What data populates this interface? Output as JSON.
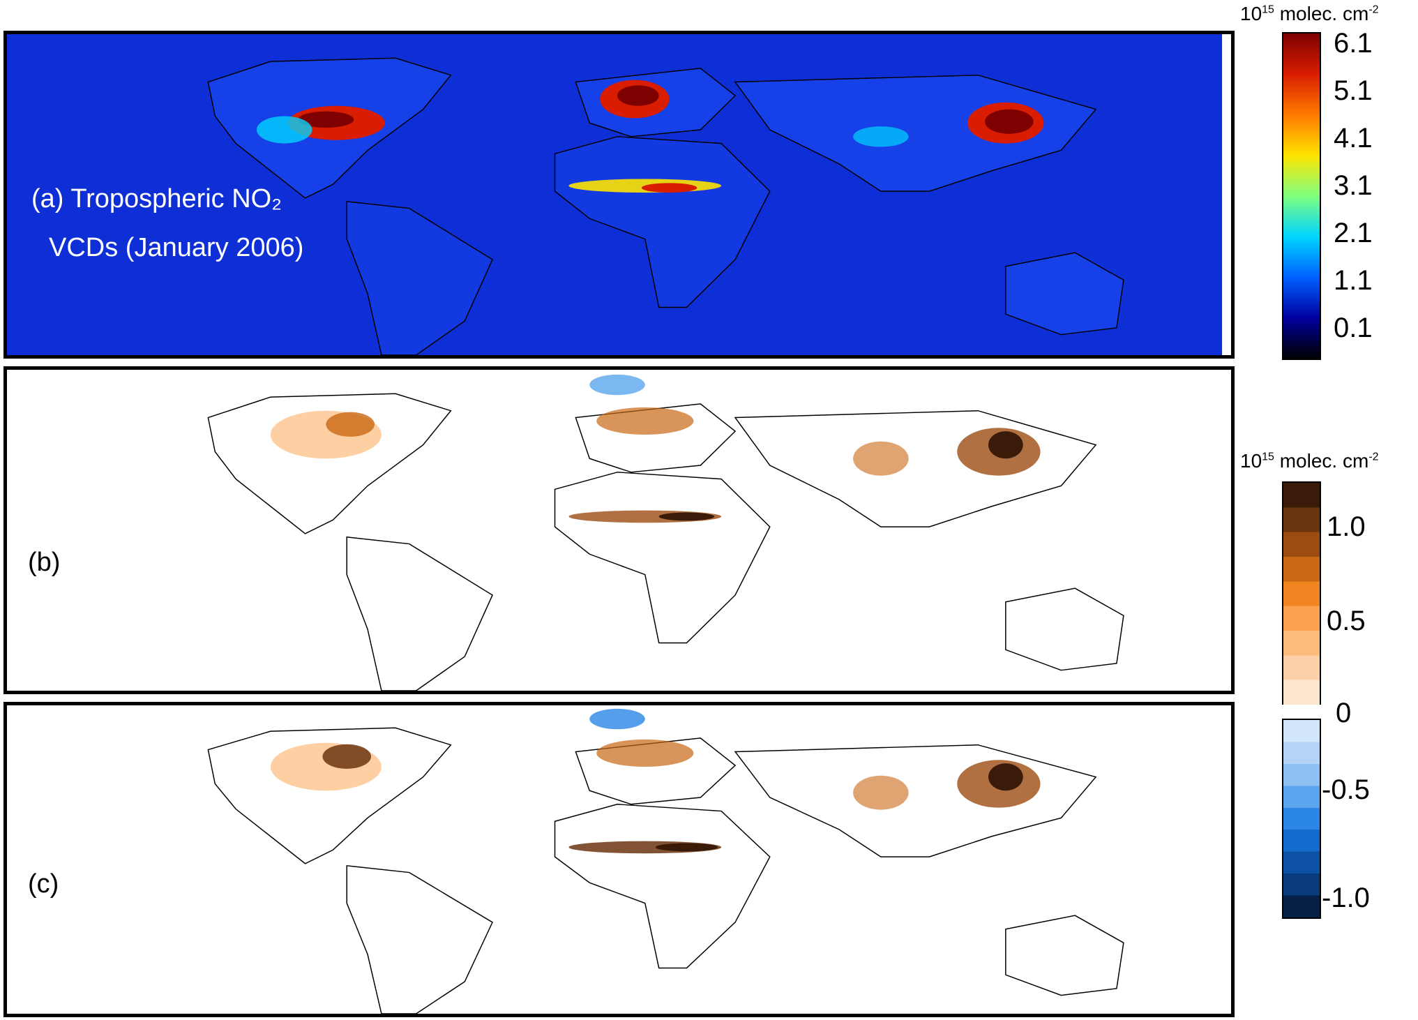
{
  "panels": {
    "a": {
      "label_line1": "(a) Tropospheric NO₂",
      "label_line2": "VCDs (January 2006)"
    },
    "b": {
      "label": "(b)"
    },
    "c": {
      "label": "(c)"
    }
  },
  "colorbar1": {
    "unit_base": "10",
    "unit_exp": "15",
    "unit_rest": " molec. cm",
    "unit_exp2": "-2",
    "ticks": [
      "6.1",
      "5.1",
      "4.1",
      "3.1",
      "2.1",
      "1.1",
      "0.1"
    ],
    "colors": [
      "#7f0000",
      "#d91d00",
      "#ff7a00",
      "#ffe400",
      "#7fff7f",
      "#00d4ff",
      "#0060ff",
      "#00009f",
      "#000000"
    ]
  },
  "colorbar2": {
    "unit_base": "10",
    "unit_exp": "15",
    "unit_rest": " molec. cm",
    "unit_exp2": "-2",
    "ticks": [
      "1.0",
      "0.5",
      "0",
      "-0.5",
      "-1.0"
    ],
    "pos_colors": [
      "#3a1a08",
      "#6b3510",
      "#9c4c12",
      "#c96712",
      "#f08522",
      "#fca14e",
      "#fdbb7c",
      "#fdd1a8",
      "#fde6d0"
    ],
    "neg_colors": [
      "#d2e6fa",
      "#b3d4f7",
      "#8ec1f3",
      "#5aa5ee",
      "#2b86e6",
      "#146bcd",
      "#0d51a4",
      "#093a7a",
      "#061f44"
    ]
  }
}
